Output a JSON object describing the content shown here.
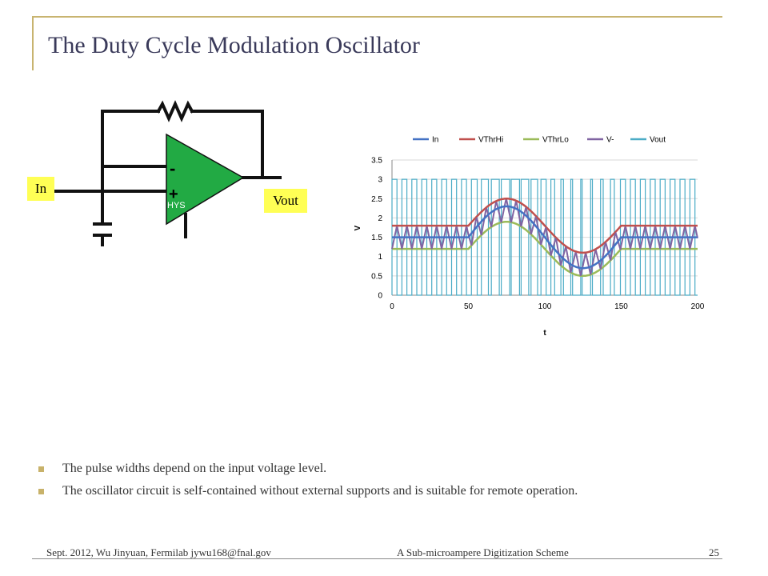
{
  "slide": {
    "title": "The Duty Cycle Modulation Oscillator",
    "bullets": [
      "The pulse widths depend on the input voltage level.",
      "The oscillator circuit is self-contained without external supports and is suitable for remote operation."
    ],
    "footer": {
      "left": "Sept. 2012, Wu Jinyuan, Fermilab jywu168@fnal.gov",
      "center": "A Sub-microampere Digitization Scheme",
      "page": "25"
    }
  },
  "circuit": {
    "in_label": "In",
    "vout_label": "Vout",
    "minus_sign": "-",
    "plus_sign": "+",
    "hys_label": "HYS",
    "opamp_color": "#22aa44"
  },
  "chart_data": {
    "type": "line",
    "xlabel": "t",
    "ylabel": "V",
    "xlim": [
      0,
      200
    ],
    "ylim": [
      0,
      3.5
    ],
    "x_ticks": [
      0,
      50,
      100,
      150,
      200
    ],
    "y_ticks": [
      0,
      0.5,
      1,
      1.5,
      2,
      2.5,
      3,
      3.5
    ],
    "legend_position": "top",
    "grid": "horizontal",
    "series": [
      {
        "name": "In",
        "color": "#4472c4",
        "model": "input",
        "base": 1.5,
        "amplitude": 0.8,
        "start": 50,
        "end": 150
      },
      {
        "name": "VThrHi",
        "color": "#c0504d",
        "model": "threshold-high",
        "base": 1.8,
        "amplitude": 0.7,
        "start": 50,
        "end": 150
      },
      {
        "name": "VThrLo",
        "color": "#9bbb59",
        "model": "threshold-low",
        "base": 1.2,
        "amplitude": 0.7,
        "start": 50,
        "end": 150
      },
      {
        "name": "V-",
        "color": "#8064a2",
        "model": "triangle",
        "period": 6.5
      },
      {
        "name": "Vout",
        "color": "#4bacc6",
        "model": "pulse",
        "low": 0,
        "high": 3
      }
    ]
  }
}
